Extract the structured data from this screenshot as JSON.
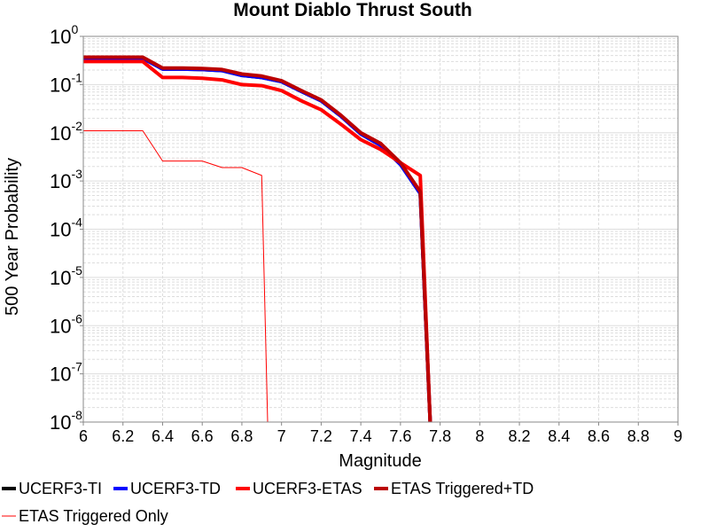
{
  "chart_data": {
    "type": "line",
    "title": "Mount Diablo Thrust South",
    "xlabel": "Magnitude",
    "ylabel": "500 Year Probability",
    "xlim": [
      6,
      9
    ],
    "ylim": [
      1e-08,
      1
    ],
    "yscale": "log",
    "grid": true,
    "legend_position": "bottom",
    "x_ticks": [
      "6",
      "6.2",
      "6.4",
      "6.6",
      "6.8",
      "7",
      "7.2",
      "7.4",
      "7.6",
      "7.8",
      "8",
      "8.2",
      "8.4",
      "8.6",
      "8.8",
      "9"
    ],
    "y_ticks": [
      {
        "base": "10",
        "exp": "0"
      },
      {
        "base": "10",
        "exp": "-1"
      },
      {
        "base": "10",
        "exp": "-2"
      },
      {
        "base": "10",
        "exp": "-3"
      },
      {
        "base": "10",
        "exp": "-4"
      },
      {
        "base": "10",
        "exp": "-5"
      },
      {
        "base": "10",
        "exp": "-6"
      },
      {
        "base": "10",
        "exp": "-7"
      },
      {
        "base": "10",
        "exp": "-8"
      }
    ],
    "series": [
      {
        "name": "UCERF3-TI",
        "color": "#000000",
        "width": 4,
        "x": [
          6.0,
          6.3,
          6.4,
          6.5,
          6.6,
          6.7,
          6.8,
          6.9,
          7.0,
          7.1,
          7.2,
          7.3,
          7.4,
          7.5,
          7.6,
          7.7,
          7.75
        ],
        "y": [
          0.35,
          0.35,
          0.21,
          0.21,
          0.205,
          0.195,
          0.155,
          0.14,
          0.115,
          0.072,
          0.046,
          0.022,
          0.0095,
          0.0055,
          0.0022,
          0.00055,
          1e-08
        ]
      },
      {
        "name": "UCERF3-TD",
        "color": "#0000ff",
        "width": 4,
        "x": [
          6.0,
          6.3,
          6.4,
          6.5,
          6.6,
          6.7,
          6.8,
          6.9,
          7.0,
          7.1,
          7.2,
          7.3,
          7.4,
          7.5,
          7.6,
          7.7,
          7.75
        ],
        "y": [
          0.35,
          0.35,
          0.21,
          0.21,
          0.205,
          0.195,
          0.155,
          0.14,
          0.115,
          0.072,
          0.046,
          0.022,
          0.0095,
          0.0055,
          0.0022,
          0.00055,
          1e-08
        ]
      },
      {
        "name": "UCERF3-ETAS",
        "color": "#ff0000",
        "width": 4,
        "x": [
          6.0,
          6.3,
          6.4,
          6.5,
          6.6,
          6.7,
          6.8,
          6.9,
          7.0,
          7.1,
          7.2,
          7.3,
          7.4,
          7.5,
          7.6,
          7.7,
          7.75
        ],
        "y": [
          0.3,
          0.3,
          0.14,
          0.14,
          0.135,
          0.125,
          0.1,
          0.095,
          0.075,
          0.046,
          0.03,
          0.015,
          0.0072,
          0.0045,
          0.0024,
          0.0013,
          1e-08
        ]
      },
      {
        "name": "ETAS Triggered+TD",
        "color": "#bb0000",
        "width": 4,
        "x": [
          6.0,
          6.3,
          6.4,
          6.5,
          6.6,
          6.7,
          6.8,
          6.9,
          7.0,
          7.1,
          7.2,
          7.3,
          7.4,
          7.5,
          7.6,
          7.7,
          7.75
        ],
        "y": [
          0.37,
          0.37,
          0.22,
          0.22,
          0.215,
          0.205,
          0.165,
          0.15,
          0.12,
          0.075,
          0.048,
          0.023,
          0.01,
          0.006,
          0.0024,
          0.0006,
          1e-08
        ]
      },
      {
        "name": "ETAS Triggered Only",
        "color": "#ff0000",
        "width": 1,
        "x": [
          6.0,
          6.3,
          6.4,
          6.6,
          6.7,
          6.8,
          6.9,
          6.93
        ],
        "y": [
          0.011,
          0.011,
          0.0026,
          0.0026,
          0.0019,
          0.0019,
          0.0013,
          1e-08
        ]
      }
    ]
  }
}
